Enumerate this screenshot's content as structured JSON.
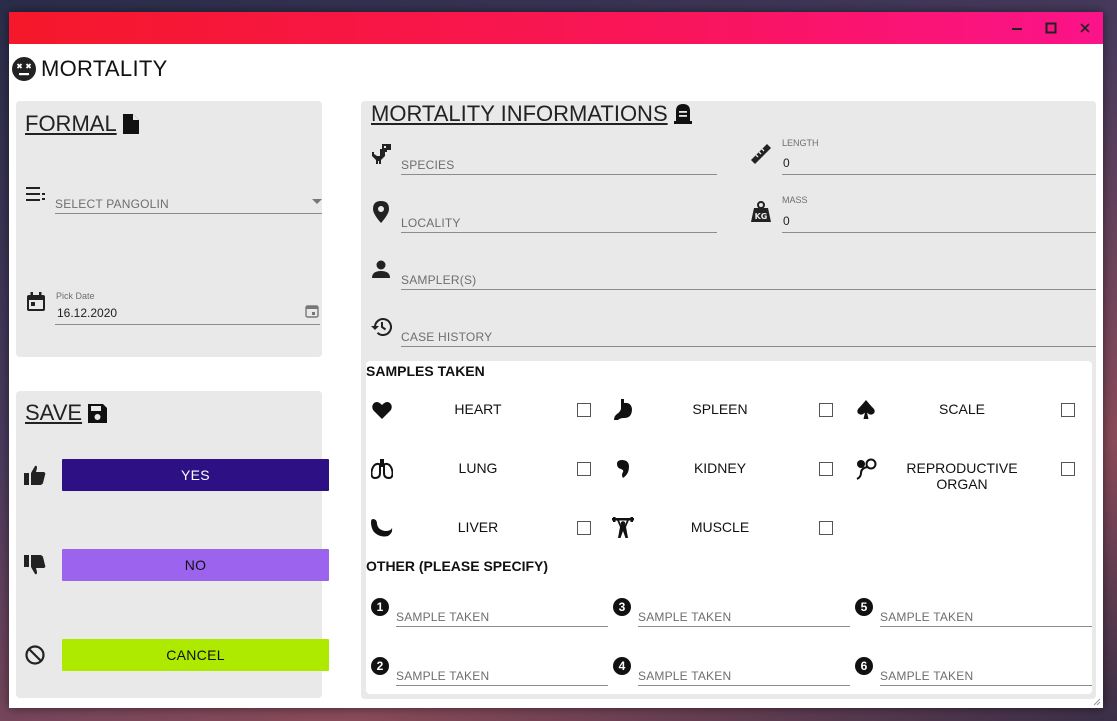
{
  "window": {
    "minimize": "–",
    "maximize": "□",
    "close": "✕"
  },
  "app": {
    "title": "MORTALITY"
  },
  "formal": {
    "header": "FORMAL",
    "pangolin_placeholder": "SELECT PANGOLIN",
    "date_label": "Pick Date",
    "date_value": "16.12.2020"
  },
  "save": {
    "header": "SAVE",
    "yes_label": "YES",
    "no_label": "NO",
    "cancel_label": "CANCEL",
    "colors": {
      "yes": "#2e1085",
      "no": "#9b63ee",
      "cancel": "#aeea00"
    }
  },
  "info": {
    "header": "MORTALITY INFORMATIONS",
    "species_placeholder": "SPECIES",
    "length_label": "LENGTH",
    "length_value": "0",
    "locality_placeholder": "LOCALITY",
    "mass_label": "MASS",
    "mass_value": "0",
    "sampler_placeholder": "SAMPLER(S)",
    "case_history_placeholder": "CASE HISTORY"
  },
  "samples": {
    "title": "SAMPLES TAKEN",
    "items": [
      {
        "label": "HEART",
        "icon": "heart-icon"
      },
      {
        "label": "SPLEEN",
        "icon": "stomach-icon"
      },
      {
        "label": "SCALE",
        "icon": "spade-icon"
      },
      {
        "label": "LUNG",
        "icon": "lungs-icon"
      },
      {
        "label": "KIDNEY",
        "icon": "kidney-icon"
      },
      {
        "label": "REPRODUCTIVE ORGAN",
        "icon": "reproductive-icon"
      },
      {
        "label": "LIVER",
        "icon": "liver-icon"
      },
      {
        "label": "MUSCLE",
        "icon": "weightlifter-icon"
      }
    ]
  },
  "other": {
    "title": "OTHER (PLEASE SPECIFY)",
    "fields": [
      {
        "number": "1",
        "placeholder": "SAMPLE TAKEN"
      },
      {
        "number": "2",
        "placeholder": "SAMPLE TAKEN"
      },
      {
        "number": "3",
        "placeholder": "SAMPLE TAKEN"
      },
      {
        "number": "4",
        "placeholder": "SAMPLE TAKEN"
      },
      {
        "number": "5",
        "placeholder": "SAMPLE TAKEN"
      },
      {
        "number": "6",
        "placeholder": "SAMPLE TAKEN"
      }
    ]
  }
}
